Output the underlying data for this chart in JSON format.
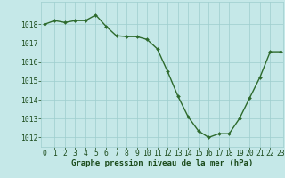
{
  "x": [
    0,
    1,
    2,
    3,
    4,
    5,
    6,
    7,
    8,
    9,
    10,
    11,
    12,
    13,
    14,
    15,
    16,
    17,
    18,
    19,
    20,
    21,
    22,
    23
  ],
  "y": [
    1018.0,
    1018.2,
    1018.1,
    1018.2,
    1018.2,
    1018.5,
    1017.9,
    1017.4,
    1017.35,
    1017.35,
    1017.2,
    1016.7,
    1015.5,
    1014.2,
    1013.1,
    1012.35,
    1012.0,
    1012.2,
    1012.2,
    1013.0,
    1014.1,
    1015.2,
    1016.55,
    1016.55
  ],
  "line_color": "#2d6a2d",
  "marker": "D",
  "marker_size": 2.0,
  "linewidth": 1.0,
  "background_color": "#c5e8e8",
  "grid_color": "#9ecece",
  "xlabel": "Graphe pression niveau de la mer (hPa)",
  "xlabel_fontsize": 6.5,
  "xlabel_color": "#1a4a1a",
  "tick_color": "#1a4a1a",
  "tick_fontsize": 5.8,
  "ylim": [
    1011.5,
    1019.2
  ],
  "yticks": [
    1012,
    1013,
    1014,
    1015,
    1016,
    1017,
    1018
  ],
  "xlim": [
    -0.3,
    23.3
  ],
  "xticks": [
    0,
    1,
    2,
    3,
    4,
    5,
    6,
    7,
    8,
    9,
    10,
    11,
    12,
    13,
    14,
    15,
    16,
    17,
    18,
    19,
    20,
    21,
    22,
    23
  ]
}
